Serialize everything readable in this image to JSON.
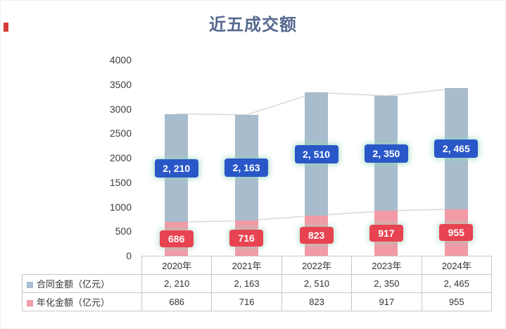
{
  "colors": {
    "title": "#56688e",
    "bar_contract": "#a8bccd",
    "bar_annualized": "#f29aa6",
    "label_contract_bg": "#2a57c8",
    "label_annualized_bg": "#e84350",
    "label_text": "#ffffff",
    "line": "#d9d9d9",
    "axis_text": "#3d3d3d",
    "table_border": "#c8c8c8"
  },
  "chart_data": {
    "type": "bar",
    "stacked": true,
    "title": "近五成交额",
    "categories": [
      "2020年",
      "2021年",
      "2022年",
      "2023年",
      "2024年"
    ],
    "series": [
      {
        "name": "合同金额（亿元）",
        "values": [
          2210,
          2163,
          2510,
          2350,
          2465
        ],
        "labels": [
          "2, 210",
          "2, 163",
          "2, 510",
          "2, 350",
          "2, 465"
        ]
      },
      {
        "name": "年化金额（亿元）",
        "values": [
          686,
          716,
          823,
          917,
          955
        ],
        "labels": [
          "686",
          "716",
          "823",
          "917",
          "955"
        ]
      }
    ],
    "totals": [
      2896,
      2879,
      3333,
      3267,
      3420
    ],
    "xlabel": "",
    "ylabel": "",
    "ylim": [
      0,
      4000
    ],
    "ytick_step": 500,
    "grid": false,
    "legend_position": "table-left"
  }
}
